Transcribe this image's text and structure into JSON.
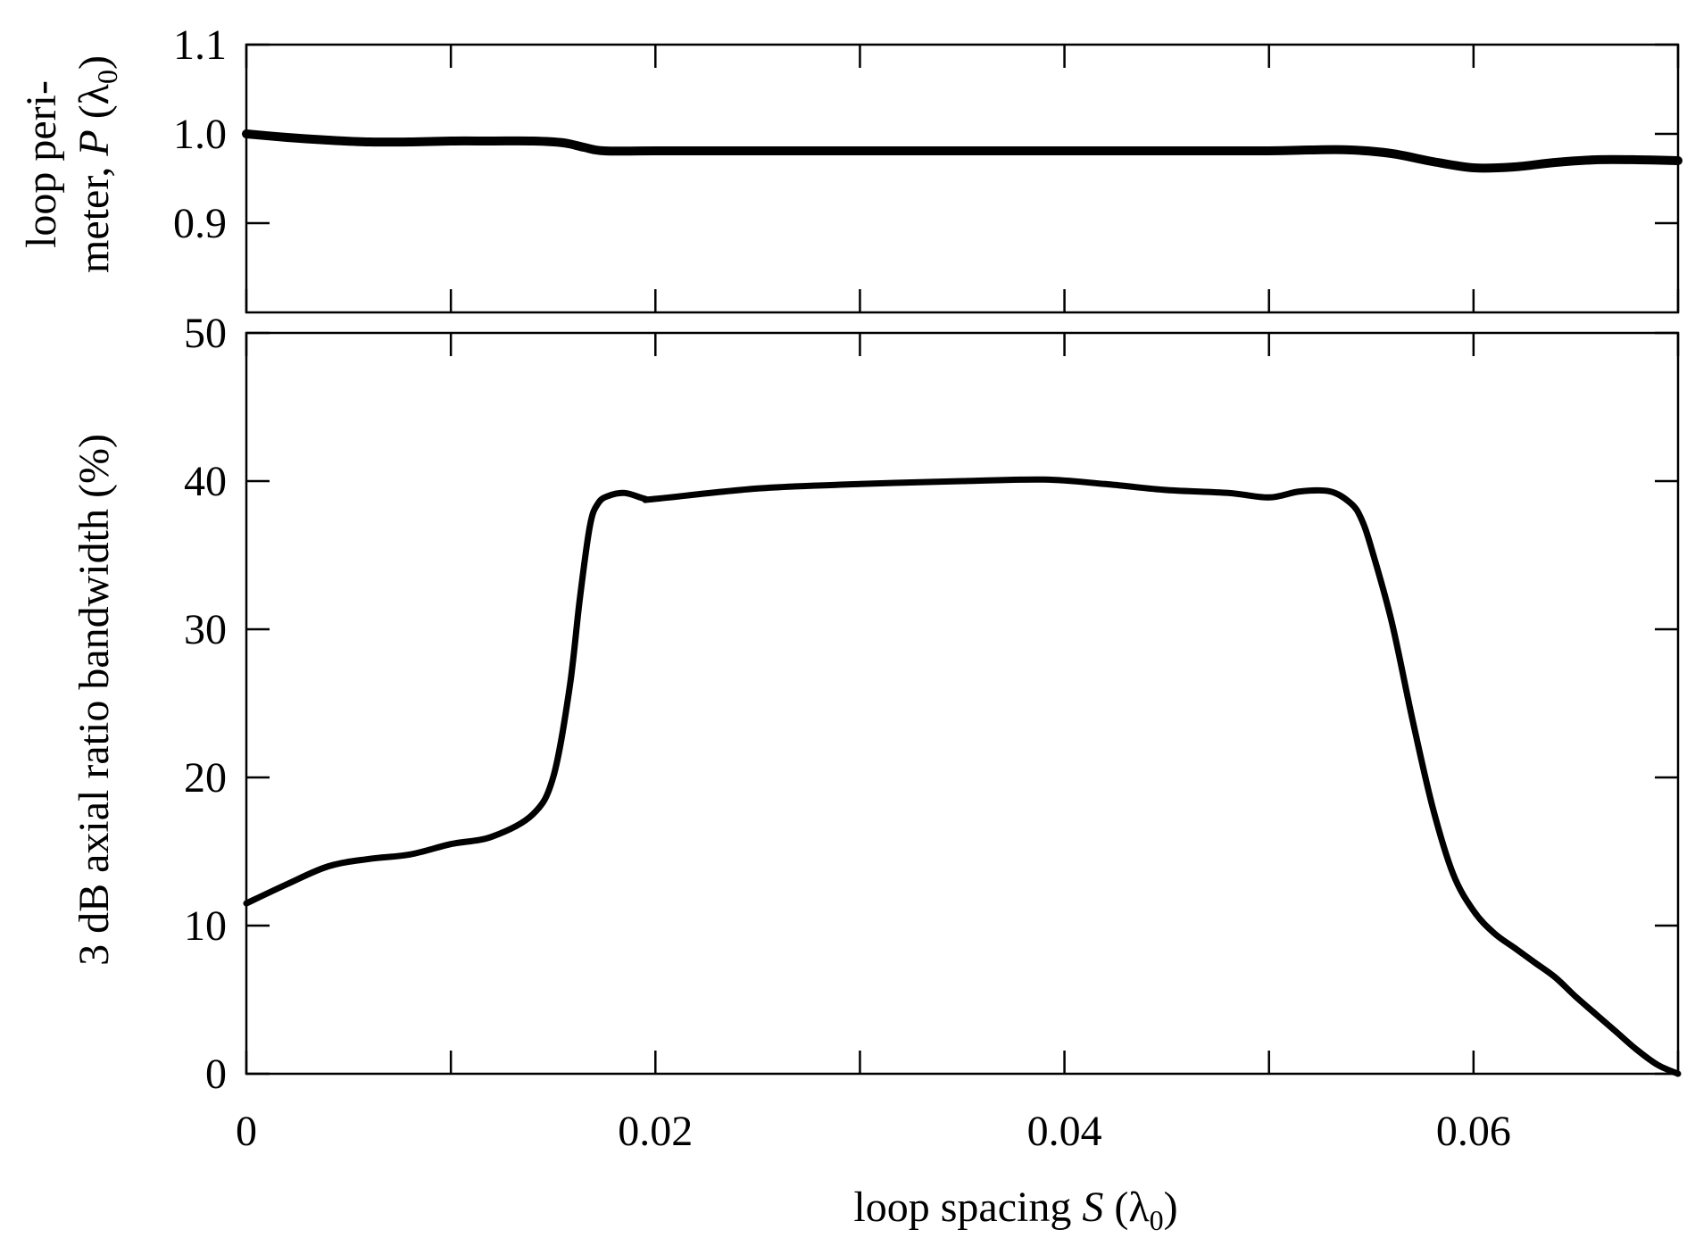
{
  "chart_data": [
    {
      "type": "line",
      "panel": "top",
      "ylabel_line1": "loop peri-",
      "ylabel_line2_prefix": "meter, ",
      "ylabel_symbol": "P",
      "ylabel_unit_open": " (λ",
      "ylabel_unit_sub": "0",
      "ylabel_unit_close": ")",
      "xlim": [
        0,
        0.07
      ],
      "ylim": [
        0.8,
        1.1
      ],
      "yticks": [
        0.9,
        1.0,
        1.1
      ],
      "ytick_labels": [
        "0.9",
        "1.0",
        "1.1"
      ],
      "xticks": [
        0,
        0.01,
        0.02,
        0.03,
        0.04,
        0.05,
        0.06,
        0.07
      ],
      "grid": false,
      "series": [
        {
          "x": [
            0,
            0.002,
            0.004,
            0.006,
            0.008,
            0.01,
            0.012,
            0.014,
            0.0155,
            0.0165,
            0.0175,
            0.02,
            0.025,
            0.03,
            0.035,
            0.04,
            0.045,
            0.05,
            0.052,
            0.054,
            0.056,
            0.058,
            0.06,
            0.062,
            0.064,
            0.066,
            0.068,
            0.07
          ],
          "y": [
            1.0,
            0.996,
            0.993,
            0.991,
            0.991,
            0.992,
            0.992,
            0.992,
            0.99,
            0.985,
            0.981,
            0.981,
            0.981,
            0.981,
            0.981,
            0.981,
            0.981,
            0.981,
            0.982,
            0.982,
            0.978,
            0.969,
            0.962,
            0.963,
            0.968,
            0.971,
            0.971,
            0.97
          ]
        }
      ]
    },
    {
      "type": "line",
      "panel": "bottom",
      "ylabel": "3 dB axial ratio bandwidth  (%)",
      "xlabel_prefix": "loop spacing ",
      "xlabel_symbol": "S",
      "xlabel_unit_open": " (λ",
      "xlabel_unit_sub": "0",
      "xlabel_unit_close": ")",
      "xlim": [
        0,
        0.07
      ],
      "ylim": [
        0,
        50
      ],
      "yticks": [
        0,
        10,
        20,
        30,
        40,
        50
      ],
      "ytick_labels": [
        "0",
        "10",
        "20",
        "30",
        "40",
        "50"
      ],
      "xticks": [
        0,
        0.01,
        0.02,
        0.03,
        0.04,
        0.05,
        0.06,
        0.07
      ],
      "xtick_labels": [
        {
          "value": 0,
          "label": "0"
        },
        {
          "value": 0.02,
          "label": "0.02"
        },
        {
          "value": 0.04,
          "label": "0.04"
        },
        {
          "value": 0.06,
          "label": "0.06"
        }
      ],
      "grid": false,
      "series": [
        {
          "x": [
            0,
            0.002,
            0.004,
            0.006,
            0.008,
            0.01,
            0.012,
            0.014,
            0.015,
            0.0158,
            0.0163,
            0.0168,
            0.0172,
            0.0177,
            0.0185,
            0.0195,
            0.02,
            0.025,
            0.03,
            0.035,
            0.039,
            0.042,
            0.045,
            0.048,
            0.05,
            0.0515,
            0.053,
            0.054,
            0.0545,
            0.055,
            0.056,
            0.057,
            0.058,
            0.059,
            0.06,
            0.061,
            0.062,
            0.063,
            0.064,
            0.065,
            0.066,
            0.067,
            0.068,
            0.069,
            0.07
          ],
          "y": [
            11.5,
            12.8,
            14.0,
            14.5,
            14.8,
            15.5,
            16.0,
            17.5,
            20.0,
            26.0,
            32.0,
            37.0,
            38.5,
            39.0,
            39.2,
            38.8,
            38.8,
            39.5,
            39.8,
            40.0,
            40.1,
            39.8,
            39.4,
            39.2,
            38.9,
            39.3,
            39.3,
            38.5,
            37.5,
            35.5,
            30.5,
            24.0,
            18.0,
            13.5,
            11.0,
            9.5,
            8.5,
            7.5,
            6.5,
            5.2,
            4.0,
            2.8,
            1.6,
            0.6,
            0.0
          ]
        }
      ]
    }
  ]
}
